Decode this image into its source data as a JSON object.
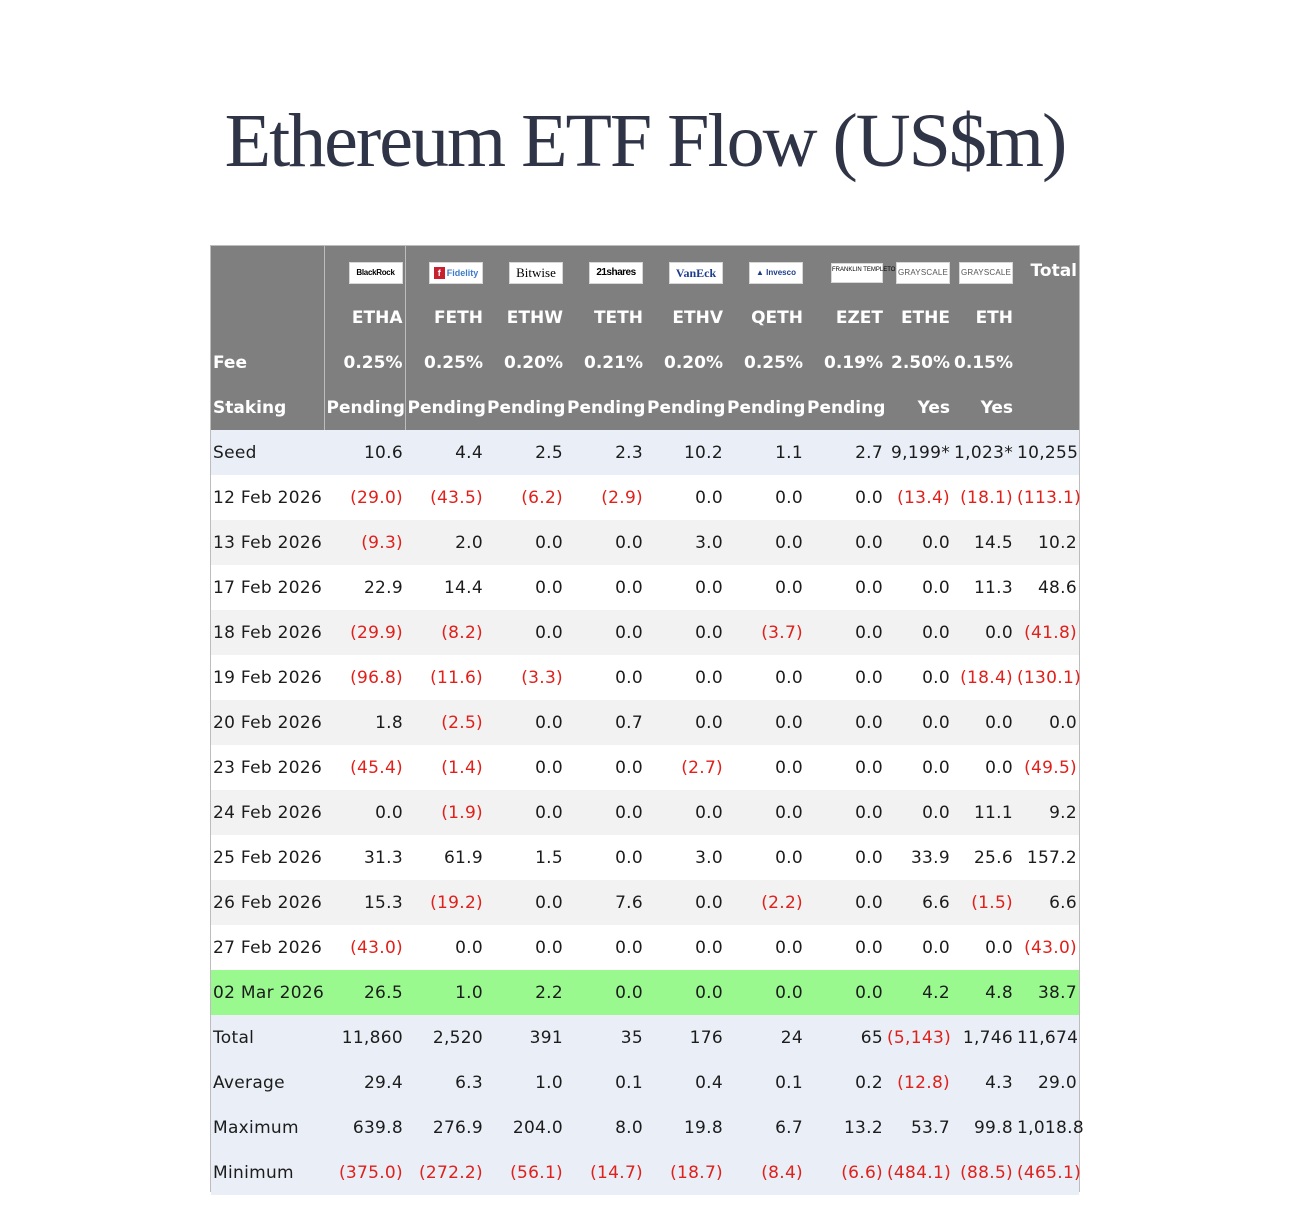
{
  "title": "Ethereum ETF Flow (US$m)",
  "colors": {
    "header_bg": "#7f7f7f",
    "negative_text": "#e0201b",
    "highlight_row": "#99f98f",
    "summary_row": "#e9eef7",
    "title_text": "#2f3447"
  },
  "header": {
    "total_label": "Total",
    "fee_label": "Fee",
    "staking_label": "Staking",
    "funds": [
      {
        "issuer": "BlackRock",
        "logo_icon": "blackrock-logo",
        "ticker": "ETHA",
        "fee": "0.25%",
        "staking": "Pending"
      },
      {
        "issuer": "Fidelity",
        "logo_icon": "fidelity-logo",
        "ticker": "FETH",
        "fee": "0.25%",
        "staking": "Pending"
      },
      {
        "issuer": "Bitwise",
        "logo_icon": "bitwise-logo",
        "ticker": "ETHW",
        "fee": "0.20%",
        "staking": "Pending"
      },
      {
        "issuer": "21shares",
        "logo_icon": "21shares-logo",
        "ticker": "TETH",
        "fee": "0.21%",
        "staking": "Pending"
      },
      {
        "issuer": "VanEck",
        "logo_icon": "vaneck-logo",
        "ticker": "ETHV",
        "fee": "0.20%",
        "staking": "Pending"
      },
      {
        "issuer": "Invesco",
        "logo_icon": "invesco-logo",
        "ticker": "QETH",
        "fee": "0.25%",
        "staking": "Pending"
      },
      {
        "issuer": "FRANKLIN TEMPLETON",
        "logo_icon": "franklin-templeton-logo",
        "ticker": "EZET",
        "fee": "0.19%",
        "staking": "Pending"
      },
      {
        "issuer": "GRAYSCALE",
        "logo_icon": "grayscale-logo",
        "ticker": "ETHE",
        "fee": "2.50%",
        "staking": "Yes"
      },
      {
        "issuer": "GRAYSCALE",
        "logo_icon": "grayscale-logo",
        "ticker": "ETH",
        "fee": "0.15%",
        "staking": "Yes"
      }
    ]
  },
  "rows": [
    {
      "label": "Seed",
      "kind": "seed",
      "values": [
        "10.6",
        "4.4",
        "2.5",
        "2.3",
        "10.2",
        "1.1",
        "2.7",
        "9,199*",
        "1,023*",
        "10,255"
      ]
    },
    {
      "label": "12 Feb 2026",
      "kind": "odd",
      "values": [
        "(29.0)",
        "(43.5)",
        "(6.2)",
        "(2.9)",
        "0.0",
        "0.0",
        "0.0",
        "(13.4)",
        "(18.1)",
        "(113.1)"
      ]
    },
    {
      "label": "13 Feb 2026",
      "kind": "even",
      "values": [
        "(9.3)",
        "2.0",
        "0.0",
        "0.0",
        "3.0",
        "0.0",
        "0.0",
        "0.0",
        "14.5",
        "10.2"
      ]
    },
    {
      "label": "17 Feb 2026",
      "kind": "odd",
      "values": [
        "22.9",
        "14.4",
        "0.0",
        "0.0",
        "0.0",
        "0.0",
        "0.0",
        "0.0",
        "11.3",
        "48.6"
      ]
    },
    {
      "label": "18 Feb 2026",
      "kind": "even",
      "values": [
        "(29.9)",
        "(8.2)",
        "0.0",
        "0.0",
        "0.0",
        "(3.7)",
        "0.0",
        "0.0",
        "0.0",
        "(41.8)"
      ]
    },
    {
      "label": "19 Feb 2026",
      "kind": "odd",
      "values": [
        "(96.8)",
        "(11.6)",
        "(3.3)",
        "0.0",
        "0.0",
        "0.0",
        "0.0",
        "0.0",
        "(18.4)",
        "(130.1)"
      ]
    },
    {
      "label": "20 Feb 2026",
      "kind": "even",
      "values": [
        "1.8",
        "(2.5)",
        "0.0",
        "0.7",
        "0.0",
        "0.0",
        "0.0",
        "0.0",
        "0.0",
        "0.0"
      ]
    },
    {
      "label": "23 Feb 2026",
      "kind": "odd",
      "values": [
        "(45.4)",
        "(1.4)",
        "0.0",
        "0.0",
        "(2.7)",
        "0.0",
        "0.0",
        "0.0",
        "0.0",
        "(49.5)"
      ]
    },
    {
      "label": "24 Feb 2026",
      "kind": "even",
      "values": [
        "0.0",
        "(1.9)",
        "0.0",
        "0.0",
        "0.0",
        "0.0",
        "0.0",
        "0.0",
        "11.1",
        "9.2"
      ]
    },
    {
      "label": "25 Feb 2026",
      "kind": "odd",
      "values": [
        "31.3",
        "61.9",
        "1.5",
        "0.0",
        "3.0",
        "0.0",
        "0.0",
        "33.9",
        "25.6",
        "157.2"
      ]
    },
    {
      "label": "26 Feb 2026",
      "kind": "even",
      "values": [
        "15.3",
        "(19.2)",
        "0.0",
        "7.6",
        "0.0",
        "(2.2)",
        "0.0",
        "6.6",
        "(1.5)",
        "6.6"
      ]
    },
    {
      "label": "27 Feb 2026",
      "kind": "odd",
      "values": [
        "(43.0)",
        "0.0",
        "0.0",
        "0.0",
        "0.0",
        "0.0",
        "0.0",
        "0.0",
        "0.0",
        "(43.0)"
      ]
    },
    {
      "label": "02 Mar 2026",
      "kind": "highlight",
      "values": [
        "26.5",
        "1.0",
        "2.2",
        "0.0",
        "0.0",
        "0.0",
        "0.0",
        "4.2",
        "4.8",
        "38.7"
      ]
    },
    {
      "label": "Total",
      "kind": "summary",
      "values": [
        "11,860",
        "2,520",
        "391",
        "35",
        "176",
        "24",
        "65",
        "(5,143)",
        "1,746",
        "11,674"
      ]
    },
    {
      "label": "Average",
      "kind": "summary",
      "values": [
        "29.4",
        "6.3",
        "1.0",
        "0.1",
        "0.4",
        "0.1",
        "0.2",
        "(12.8)",
        "4.3",
        "29.0"
      ]
    },
    {
      "label": "Maximum",
      "kind": "summary",
      "values": [
        "639.8",
        "276.9",
        "204.0",
        "8.0",
        "19.8",
        "6.7",
        "13.2",
        "53.7",
        "99.8",
        "1,018.8"
      ]
    },
    {
      "label": "Minimum",
      "kind": "summary",
      "values": [
        "(375.0)",
        "(272.2)",
        "(56.1)",
        "(14.7)",
        "(18.7)",
        "(8.4)",
        "(6.6)",
        "(484.1)",
        "(88.5)",
        "(465.1)"
      ]
    }
  ]
}
